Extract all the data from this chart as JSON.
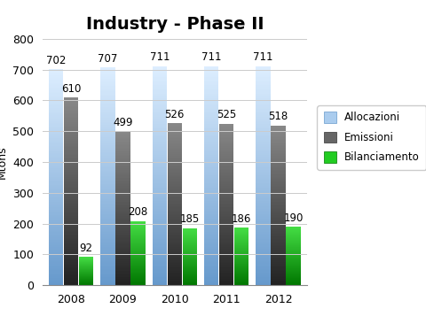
{
  "title": "Industry - Phase II",
  "ylabel": "Mtons",
  "years": [
    "2008",
    "2009",
    "2010",
    "2011",
    "2012"
  ],
  "allocazioni": [
    702,
    707,
    711,
    711,
    711
  ],
  "emissioni": [
    610,
    499,
    526,
    525,
    518
  ],
  "bilanciamento": [
    92,
    208,
    185,
    186,
    190
  ],
  "alloc_color_top": "#ddeeff",
  "alloc_color_bottom": "#6699cc",
  "emiss_color_top": "#888888",
  "emiss_color_bottom": "#222222",
  "bil_color_top": "#44dd44",
  "bil_color_bottom": "#007700",
  "ylim": [
    0,
    800
  ],
  "yticks": [
    0,
    100,
    200,
    300,
    400,
    500,
    600,
    700,
    800
  ],
  "bar_width": 0.28,
  "title_fontsize": 14,
  "legend_labels": [
    "Allocazioni",
    "Emissioni",
    "Bilanciamento"
  ],
  "label_fontsize": 8.5
}
